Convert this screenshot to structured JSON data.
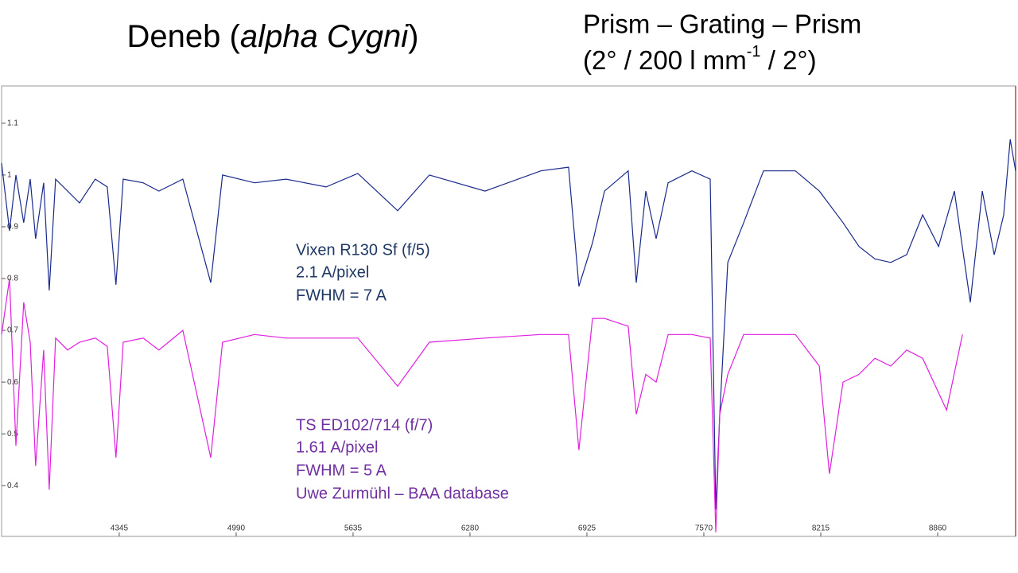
{
  "chart_data": {
    "type": "line",
    "title_parts": [
      "Deneb (",
      "alpha Cygni",
      ")"
    ],
    "subtitle_line1": "Prism – Grating – Prism",
    "subtitle_line2_parts": [
      "(2° / 200 l mm",
      "-1",
      " / 2°)"
    ],
    "annotations": [
      {
        "color": "#1f3864",
        "lines": [
          "Vixen R130 Sf (f/5)",
          "2.1 A/pixel",
          "FWHM = 7 A"
        ]
      },
      {
        "color": "#7030a0",
        "lines": [
          "TS ED102/714 (f/7)",
          "1.61 A/pixel",
          "FWHM = 5 A",
          "Uwe Zurmühl – BAA database"
        ]
      }
    ],
    "xlim": [
      3696,
      9290
    ],
    "xticks": [
      4345,
      4990,
      5635,
      6280,
      6925,
      7570,
      8215,
      8860
    ],
    "ylim": [
      0.302,
      1.172
    ],
    "yticks": [
      1.1,
      1,
      0.9,
      0.8,
      0.7,
      0.6,
      0.5,
      0.4
    ],
    "series": [
      {
        "color": "#1a2a8c",
        "x": [
          3696,
          3740,
          3775,
          3818,
          3854,
          3884,
          3928,
          3959,
          3994,
          4060,
          4126,
          4213,
          4279,
          4327,
          4367,
          4477,
          4564,
          4696,
          4850,
          4915,
          5091,
          5266,
          5486,
          5661,
          5881,
          6056,
          6363,
          6671,
          6824,
          6881,
          6956,
          7022,
          7153,
          7197,
          7250,
          7307,
          7373,
          7504,
          7605,
          7636,
          7658,
          7702,
          7790,
          7899,
          8075,
          8207,
          8338,
          8426,
          8514,
          8601,
          8689,
          8777,
          8865,
          8952,
          9040,
          9106,
          9172,
          9224,
          9260,
          9290
        ],
        "values": [
          1.023,
          0.892,
          1.0,
          0.908,
          0.992,
          0.877,
          0.985,
          0.777,
          0.992,
          0.969,
          0.946,
          0.992,
          0.977,
          0.788,
          0.992,
          0.985,
          0.969,
          0.992,
          0.792,
          1.0,
          0.985,
          0.992,
          0.977,
          1.003,
          0.931,
          1.0,
          0.969,
          1.008,
          1.015,
          0.785,
          0.869,
          0.969,
          1.008,
          0.792,
          0.969,
          0.877,
          0.985,
          1.008,
          0.992,
          0.354,
          0.538,
          0.831,
          0.908,
          1.008,
          1.008,
          0.969,
          0.908,
          0.862,
          0.838,
          0.831,
          0.846,
          0.923,
          0.862,
          0.969,
          0.754,
          0.969,
          0.846,
          0.923,
          1.069,
          1.008
        ]
      },
      {
        "color": "#e020e0",
        "x": [
          3696,
          3740,
          3775,
          3818,
          3854,
          3884,
          3928,
          3959,
          3994,
          4060,
          4126,
          4213,
          4279,
          4327,
          4367,
          4477,
          4564,
          4696,
          4850,
          4915,
          5091,
          5266,
          5486,
          5661,
          5881,
          6056,
          6363,
          6671,
          6824,
          6881,
          6956,
          7022,
          7153,
          7197,
          7250,
          7307,
          7373,
          7504,
          7605,
          7636,
          7658,
          7702,
          7790,
          7899,
          8075,
          8207,
          8263,
          8338,
          8426,
          8514,
          8601,
          8689,
          8777,
          8909,
          8997
        ],
        "values": [
          0.692,
          0.8,
          0.477,
          0.754,
          0.677,
          0.438,
          0.662,
          0.392,
          0.685,
          0.662,
          0.677,
          0.685,
          0.669,
          0.454,
          0.677,
          0.685,
          0.662,
          0.7,
          0.454,
          0.677,
          0.692,
          0.685,
          0.685,
          0.685,
          0.592,
          0.677,
          0.685,
          0.692,
          0.692,
          0.469,
          0.723,
          0.723,
          0.708,
          0.538,
          0.615,
          0.6,
          0.692,
          0.692,
          0.685,
          0.31,
          0.538,
          0.615,
          0.692,
          0.692,
          0.692,
          0.631,
          0.423,
          0.6,
          0.615,
          0.646,
          0.631,
          0.662,
          0.646,
          0.546,
          0.692
        ]
      }
    ]
  }
}
